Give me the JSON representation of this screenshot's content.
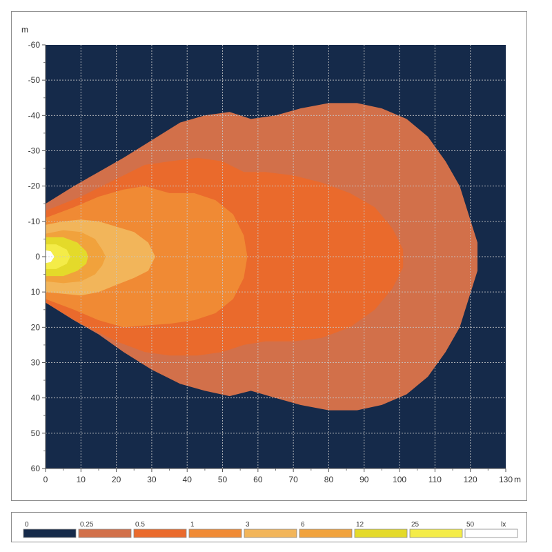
{
  "chart_data": {
    "type": "heatmap",
    "title": "",
    "xlabel": "m",
    "ylabel": "m",
    "xlim": [
      0,
      130
    ],
    "ylim": [
      -60,
      60
    ],
    "y_axis_direction": "top-to-bottom (-60 at top, 60 at bottom)",
    "grid": true,
    "x_ticks": [
      "0",
      "10",
      "20",
      "30",
      "40",
      "50",
      "60",
      "70",
      "80",
      "90",
      "100",
      "110",
      "120",
      "130"
    ],
    "y_ticks": [
      "-60",
      "-50",
      "-40",
      "-30",
      "-20",
      "-10",
      "0",
      "10",
      "20",
      "30",
      "40",
      "50",
      "60"
    ],
    "background_color": "#152a4a",
    "legend": {
      "placement": "bottom",
      "unit": "lx",
      "levels": [
        {
          "label": "0",
          "color": "#152a4a"
        },
        {
          "label": "0.25",
          "color": "#d2704a"
        },
        {
          "label": "0.5",
          "color": "#ea6a2c"
        },
        {
          "label": "1",
          "color": "#f08a34"
        },
        {
          "label": "3",
          "color": "#f2b55a"
        },
        {
          "label": "6",
          "color": "#f1a23c"
        },
        {
          "label": "12",
          "color": "#e4da2a"
        },
        {
          "label": "25",
          "color": "#f4ec48"
        },
        {
          "label": "50",
          "color": "#ffffff"
        }
      ]
    },
    "isolux_contours": [
      {
        "level": "0.25",
        "color": "#d2704a",
        "points": [
          [
            0,
            -15
          ],
          [
            8,
            -20
          ],
          [
            15,
            -24
          ],
          [
            22,
            -28
          ],
          [
            30,
            -33
          ],
          [
            38,
            -38
          ],
          [
            45,
            -40
          ],
          [
            52,
            -41
          ],
          [
            58,
            -39
          ],
          [
            65,
            -40
          ],
          [
            72,
            -42
          ],
          [
            80,
            -43.5
          ],
          [
            88,
            -43.5
          ],
          [
            95,
            -42
          ],
          [
            102,
            -39
          ],
          [
            108,
            -34
          ],
          [
            113,
            -27
          ],
          [
            117,
            -20
          ],
          [
            119.5,
            -12
          ],
          [
            122,
            -4
          ],
          [
            122,
            4
          ],
          [
            119.5,
            12
          ],
          [
            117,
            20
          ],
          [
            113,
            27
          ],
          [
            108,
            34
          ],
          [
            102,
            39
          ],
          [
            95,
            42
          ],
          [
            88,
            43.5
          ],
          [
            80,
            43.5
          ],
          [
            72,
            42
          ],
          [
            65,
            40
          ],
          [
            58,
            38
          ],
          [
            52,
            39.5
          ],
          [
            45,
            38
          ],
          [
            38,
            36
          ],
          [
            30,
            32
          ],
          [
            22,
            27
          ],
          [
            15,
            22
          ],
          [
            8,
            18
          ],
          [
            0,
            13
          ]
        ]
      },
      {
        "level": "0.5",
        "color": "#ea6a2c",
        "points": [
          [
            0,
            -13
          ],
          [
            10,
            -17
          ],
          [
            20,
            -22
          ],
          [
            28,
            -26
          ],
          [
            35,
            -27
          ],
          [
            43,
            -28
          ],
          [
            50,
            -27
          ],
          [
            56,
            -24
          ],
          [
            62,
            -24
          ],
          [
            70,
            -23
          ],
          [
            78,
            -21
          ],
          [
            86,
            -18
          ],
          [
            93,
            -14
          ],
          [
            98,
            -8
          ],
          [
            101,
            -2
          ],
          [
            101,
            3
          ],
          [
            98,
            9
          ],
          [
            93,
            15
          ],
          [
            86,
            20
          ],
          [
            78,
            23
          ],
          [
            70,
            24
          ],
          [
            62,
            24
          ],
          [
            56,
            25
          ],
          [
            50,
            27
          ],
          [
            43,
            28
          ],
          [
            35,
            28
          ],
          [
            28,
            27
          ],
          [
            20,
            24
          ],
          [
            10,
            19
          ],
          [
            0,
            13
          ]
        ]
      },
      {
        "level": "1",
        "color": "#f08a34",
        "points": [
          [
            0,
            -11
          ],
          [
            8,
            -14
          ],
          [
            15,
            -17
          ],
          [
            22,
            -19
          ],
          [
            28,
            -20
          ],
          [
            35,
            -18
          ],
          [
            42,
            -18
          ],
          [
            48,
            -16
          ],
          [
            53,
            -12
          ],
          [
            56,
            -6
          ],
          [
            57,
            0
          ],
          [
            56,
            6
          ],
          [
            53,
            12
          ],
          [
            48,
            16
          ],
          [
            42,
            18
          ],
          [
            35,
            19
          ],
          [
            28,
            19.5
          ],
          [
            22,
            20
          ],
          [
            15,
            18
          ],
          [
            8,
            15
          ],
          [
            0,
            12
          ]
        ]
      },
      {
        "level": "3",
        "color": "#f2b55a",
        "points": [
          [
            0,
            -9
          ],
          [
            5,
            -10
          ],
          [
            10,
            -10.5
          ],
          [
            15,
            -10
          ],
          [
            20,
            -8.5
          ],
          [
            25,
            -7
          ],
          [
            29,
            -4
          ],
          [
            31,
            0
          ],
          [
            29,
            4
          ],
          [
            25,
            6
          ],
          [
            20,
            8
          ],
          [
            15,
            10
          ],
          [
            10,
            11
          ],
          [
            5,
            10.5
          ],
          [
            0,
            10
          ]
        ]
      },
      {
        "level": "6",
        "color": "#f1a23c",
        "points": [
          [
            0,
            -6.5
          ],
          [
            5,
            -7.5
          ],
          [
            10,
            -7
          ],
          [
            14,
            -5
          ],
          [
            16,
            -2
          ],
          [
            17,
            0
          ],
          [
            16,
            2.5
          ],
          [
            14,
            5
          ],
          [
            10,
            7
          ],
          [
            5,
            7.5
          ],
          [
            0,
            7
          ]
        ]
      },
      {
        "level": "12",
        "color": "#e4da2a",
        "points": [
          [
            0,
            -5.5
          ],
          [
            5,
            -5.5
          ],
          [
            9,
            -4
          ],
          [
            11.5,
            -1.5
          ],
          [
            12,
            0
          ],
          [
            11.5,
            2
          ],
          [
            9,
            4
          ],
          [
            5,
            5.5
          ],
          [
            0,
            5.5
          ]
        ]
      },
      {
        "level": "25",
        "color": "#f4ec48",
        "points": [
          [
            0,
            -3.5
          ],
          [
            3,
            -3.5
          ],
          [
            6,
            -2
          ],
          [
            7,
            0
          ],
          [
            6,
            2
          ],
          [
            3,
            3.5
          ],
          [
            0,
            3.5
          ]
        ]
      },
      {
        "level": "50",
        "color": "#ffffff",
        "points": [
          [
            0,
            -1.8
          ],
          [
            1.5,
            -1.5
          ],
          [
            2.5,
            0
          ],
          [
            1.5,
            1.5
          ],
          [
            0,
            1.8
          ]
        ]
      }
    ]
  }
}
